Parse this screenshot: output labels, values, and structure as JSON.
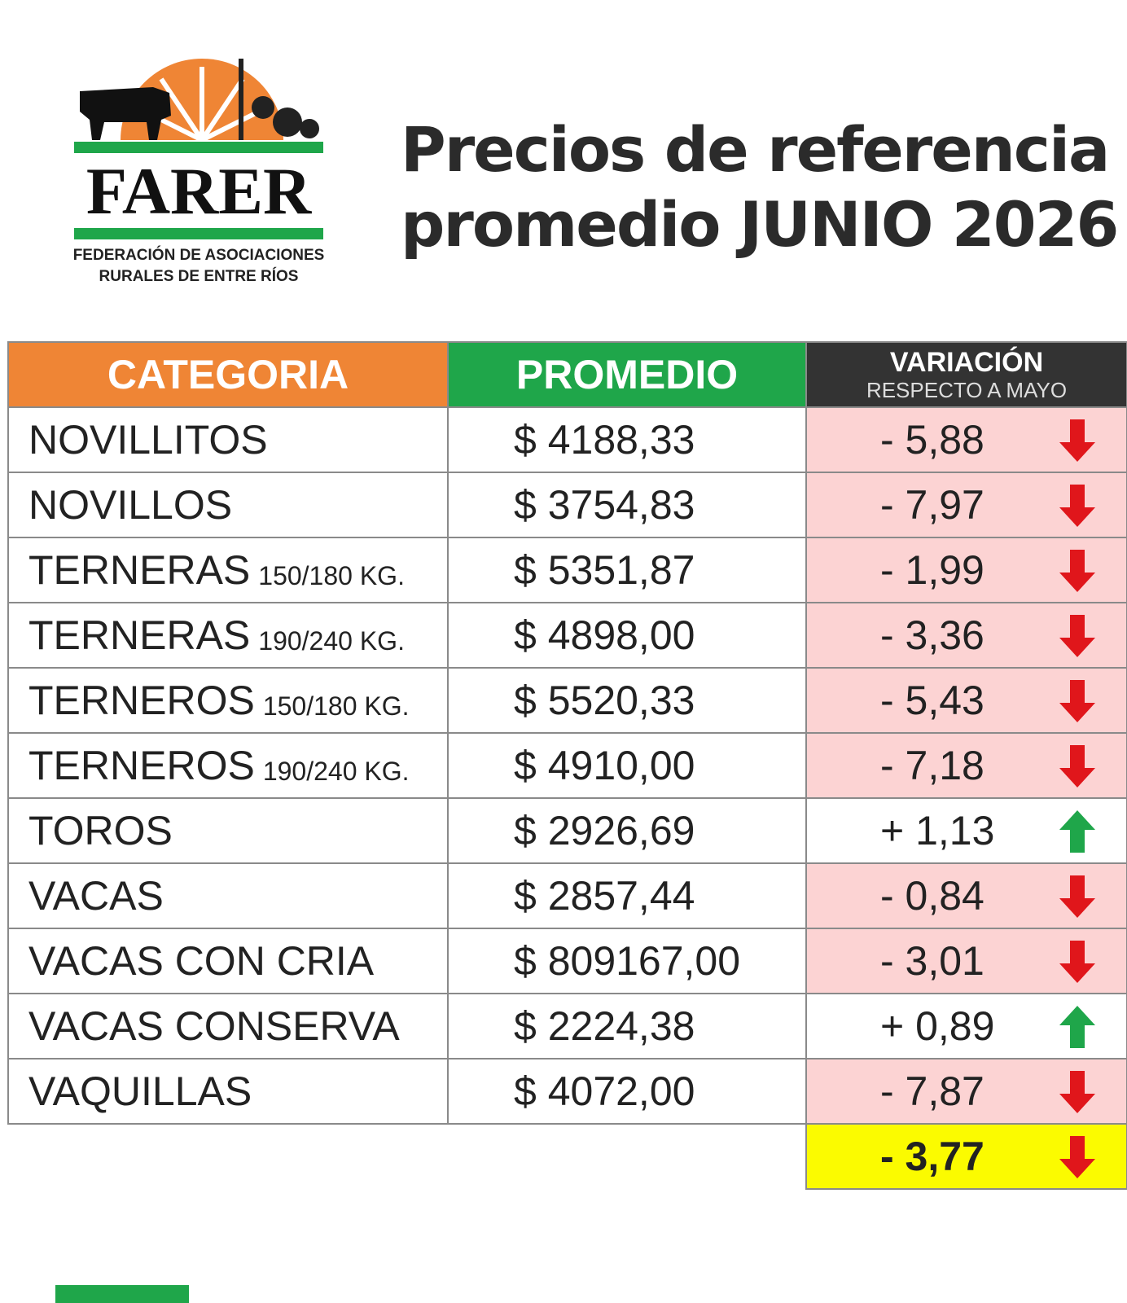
{
  "logo": {
    "name": "FARER",
    "subtitle_line1": "FEDERACIÓN DE ASOCIACIONES",
    "subtitle_line2": "RURALES DE ENTRE RÍOS"
  },
  "header": {
    "title_line1": "Precios de referencia",
    "title_line2": "promedio JUNIO 2026"
  },
  "table": {
    "columns": {
      "category": "CATEGORIA",
      "average": "PROMEDIO",
      "variation": "VARIACIÓN",
      "variation_sub": "RESPECTO A MAYO"
    },
    "rows": [
      {
        "category": "NOVILLITOS",
        "price": "$ 4188,33",
        "variation": "- 5,88",
        "trend": "down"
      },
      {
        "category": "NOVILLOS",
        "price": "$ 3754,83",
        "variation": "- 7,97",
        "trend": "down"
      },
      {
        "category": "TERNERAS",
        "detail": "150/180 KG.",
        "price": "$ 5351,87",
        "variation": "- 1,99",
        "trend": "down"
      },
      {
        "category": "TERNERAS",
        "detail": "190/240 KG.",
        "price": "$ 4898,00",
        "variation": "- 3,36",
        "trend": "down"
      },
      {
        "category": "TERNEROS",
        "detail": "150/180 KG.",
        "price": "$ 5520,33",
        "variation": "- 5,43",
        "trend": "down"
      },
      {
        "category": "TERNEROS",
        "detail": "190/240 KG.",
        "price": "$ 4910,00",
        "variation": "- 7,18",
        "trend": "down"
      },
      {
        "category": "TOROS",
        "price": "$ 2926,69",
        "variation": "+ 1,13",
        "trend": "up"
      },
      {
        "category": "VACAS",
        "price": "$ 2857,44",
        "variation": "- 0,84",
        "trend": "down"
      },
      {
        "category": "VACAS CON CRIA",
        "price": "$ 809167,00",
        "variation": "- 3,01",
        "trend": "down"
      },
      {
        "category": "VACAS CONSERVA",
        "price": "$ 2224,38",
        "variation": "+ 0,89",
        "trend": "up"
      },
      {
        "category": "VAQUILLAS",
        "price": "$ 4072,00",
        "variation": "- 7,87",
        "trend": "down"
      }
    ],
    "total": {
      "variation": "- 3,77",
      "trend": "down"
    }
  }
}
